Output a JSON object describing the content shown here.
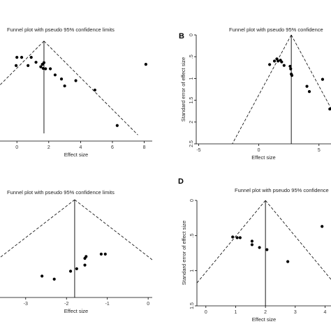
{
  "chart_data": [
    {
      "type": "scatter",
      "panel_letter": "",
      "title": "Funnel plot with pseudo 95% confidence limits",
      "xlabel": "Effect size",
      "ylabel": "",
      "xlim": [
        -1.5,
        8.5
      ],
      "ylim": [
        0,
        2.6
      ],
      "y_reversed": true,
      "xticks": [
        "0",
        "2",
        "4",
        "6",
        "8"
      ],
      "xtick_values": [
        0,
        2,
        4,
        6,
        8
      ],
      "yticks": [],
      "pooled_effect": 1.7,
      "funnel_apex": [
        1.7,
        0.15
      ],
      "funnel_base_y": 2.45,
      "funnel_base_x": [
        -4.2,
        7.6
      ],
      "points": [
        {
          "x": 0.0,
          "y": 0.55
        },
        {
          "x": 0.3,
          "y": 0.55
        },
        {
          "x": -0.05,
          "y": 0.75
        },
        {
          "x": 0.9,
          "y": 0.55
        },
        {
          "x": 0.7,
          "y": 0.75
        },
        {
          "x": 1.2,
          "y": 0.67
        },
        {
          "x": 1.5,
          "y": 0.78
        },
        {
          "x": 1.6,
          "y": 0.72
        },
        {
          "x": 1.7,
          "y": 0.68
        },
        {
          "x": 1.65,
          "y": 0.82
        },
        {
          "x": 1.8,
          "y": 0.83
        },
        {
          "x": 2.1,
          "y": 0.83
        },
        {
          "x": 2.4,
          "y": 0.98
        },
        {
          "x": 2.8,
          "y": 1.08
        },
        {
          "x": 3.0,
          "y": 1.25
        },
        {
          "x": 3.7,
          "y": 1.12
        },
        {
          "x": 4.9,
          "y": 1.35
        },
        {
          "x": 8.1,
          "y": 0.72
        },
        {
          "x": 6.3,
          "y": 2.22
        }
      ]
    },
    {
      "type": "scatter",
      "panel_letter": "B",
      "title": "Funnel plot with pseudo 95% confidence",
      "xlabel": "Effect size",
      "ylabel": "Standard error of effect size",
      "xlim": [
        -5.2,
        6
      ],
      "ylim": [
        0,
        2.5
      ],
      "y_reversed": true,
      "xticks": [
        "-5",
        "0",
        "5"
      ],
      "xtick_values": [
        -5,
        0,
        5
      ],
      "yticks": [
        "0",
        ".5",
        "1",
        "1.5",
        "2",
        "2.5"
      ],
      "ytick_values": [
        0,
        0.5,
        1,
        1.5,
        2,
        2.5
      ],
      "pooled_effect": 2.7,
      "funnel_apex": [
        2.7,
        0
      ],
      "funnel_base_y": 2.5,
      "funnel_base_x": [
        -2.2,
        7.6
      ],
      "points": [
        {
          "x": 0.9,
          "y": 0.68
        },
        {
          "x": 1.3,
          "y": 0.6
        },
        {
          "x": 1.5,
          "y": 0.55
        },
        {
          "x": 1.6,
          "y": 0.6
        },
        {
          "x": 1.8,
          "y": 0.58
        },
        {
          "x": 1.9,
          "y": 0.62
        },
        {
          "x": 2.1,
          "y": 0.7
        },
        {
          "x": 2.6,
          "y": 0.72
        },
        {
          "x": 2.65,
          "y": 0.78
        },
        {
          "x": 2.7,
          "y": 0.9
        },
        {
          "x": 2.75,
          "y": 0.93
        },
        {
          "x": 4.0,
          "y": 1.18
        },
        {
          "x": 4.2,
          "y": 1.3
        },
        {
          "x": 5.3,
          "y": 1.02
        },
        {
          "x": 5.9,
          "y": 1.7
        }
      ]
    },
    {
      "type": "scatter",
      "panel_letter": "",
      "title": "Funnel plot with pseudo 95% confidence limits",
      "xlabel": "Effect size",
      "ylabel": "",
      "xlim": [
        -3.8,
        0.1
      ],
      "ylim": [
        0,
        1.6
      ],
      "y_reversed": true,
      "xticks": [
        "-3",
        "-2",
        "-1",
        "0"
      ],
      "xtick_values": [
        -3,
        -2,
        -1,
        0
      ],
      "yticks": [],
      "pooled_effect": -1.8,
      "funnel_apex": [
        -1.8,
        0
      ],
      "funnel_base_y": 1.5,
      "funnel_base_x": [
        -4.7,
        1.1
      ],
      "points": [
        {
          "x": -2.6,
          "y": 1.25
        },
        {
          "x": -2.3,
          "y": 1.3
        },
        {
          "x": -1.9,
          "y": 1.17
        },
        {
          "x": -1.75,
          "y": 1.13
        },
        {
          "x": -1.55,
          "y": 1.07
        },
        {
          "x": -1.55,
          "y": 0.96
        },
        {
          "x": -1.52,
          "y": 0.93
        },
        {
          "x": -1.15,
          "y": 0.89
        },
        {
          "x": -1.05,
          "y": 0.89
        }
      ]
    },
    {
      "type": "scatter",
      "panel_letter": "D",
      "title": "Funnel plot with pseudo 95% confidence",
      "xlabel": "Effect size",
      "ylabel": "Standard error of effect size",
      "xlim": [
        -0.3,
        4.2
      ],
      "ylim": [
        0,
        1.5
      ],
      "y_reversed": true,
      "xticks": [
        "0",
        "1",
        "2",
        "3",
        "4"
      ],
      "xtick_values": [
        0,
        1,
        2,
        3,
        4
      ],
      "yticks": [
        "0",
        ".5",
        "1",
        "1.5"
      ],
      "ytick_values": [
        0,
        0.5,
        1,
        1.5
      ],
      "pooled_effect": 2.0,
      "funnel_apex": [
        2.0,
        0
      ],
      "funnel_base_y": 1.2,
      "funnel_base_x": [
        -0.35,
        4.35
      ],
      "points": [
        {
          "x": 0.9,
          "y": 0.52
        },
        {
          "x": 1.05,
          "y": 0.53
        },
        {
          "x": 1.15,
          "y": 0.53
        },
        {
          "x": 1.55,
          "y": 0.58
        },
        {
          "x": 1.55,
          "y": 0.63
        },
        {
          "x": 1.8,
          "y": 0.67
        },
        {
          "x": 2.05,
          "y": 0.7
        },
        {
          "x": 2.75,
          "y": 0.87
        },
        {
          "x": 3.9,
          "y": 0.37
        }
      ]
    }
  ]
}
